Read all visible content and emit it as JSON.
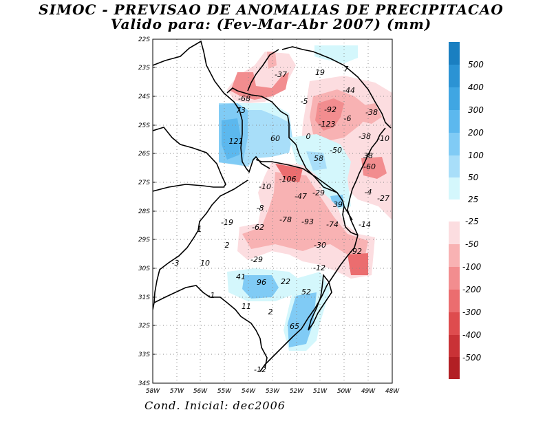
{
  "title_line1": "SIMOC - PREVISAO DE ANOMALIAS DE PRECIPITACAO",
  "title_line2": "Valido para: (Fev-Mar-Abr 2007) (mm)",
  "footer": "Cond. Inicial: dec2006",
  "lat_labels": [
    "22S",
    "23S",
    "24S",
    "25S",
    "26S",
    "27S",
    "28S",
    "29S",
    "30S",
    "31S",
    "32S",
    "33S",
    "34S"
  ],
  "lon_labels": [
    "58W",
    "57W",
    "56W",
    "55W",
    "54W",
    "53W",
    "52W",
    "51W",
    "50W",
    "49W",
    "48W"
  ],
  "colorbar": {
    "positive": [
      {
        "label": "500",
        "color": "#1a7fc1"
      },
      {
        "label": "400",
        "color": "#2b93d4"
      },
      {
        "label": "300",
        "color": "#3fa6e3"
      },
      {
        "label": "200",
        "color": "#5cb8ee"
      },
      {
        "label": "100",
        "color": "#80cbf5"
      },
      {
        "label": "50",
        "color": "#a8def9"
      },
      {
        "label": "25",
        "color": "#d4f7fc"
      }
    ],
    "negative": [
      {
        "label": "-25",
        "color": "#fcdde0"
      },
      {
        "label": "-50",
        "color": "#f8b2b3"
      },
      {
        "label": "-100",
        "color": "#f28d8f"
      },
      {
        "label": "-200",
        "color": "#eb6d6f"
      },
      {
        "label": "-300",
        "color": "#de4c4e"
      },
      {
        "label": "-400",
        "color": "#c93236"
      },
      {
        "label": "-500",
        "color": "#b21f24"
      }
    ]
  },
  "values": [
    {
      "text": "-37"
    },
    {
      "text": "19"
    },
    {
      "text": "7"
    },
    {
      "text": "-68"
    },
    {
      "text": "-44"
    },
    {
      "text": "-5"
    },
    {
      "text": "73"
    },
    {
      "text": "-92"
    },
    {
      "text": "-38"
    },
    {
      "text": "-6"
    },
    {
      "text": "-123"
    },
    {
      "text": "0"
    },
    {
      "text": "-38"
    },
    {
      "text": "-10"
    },
    {
      "text": "60"
    },
    {
      "text": "121"
    },
    {
      "text": "-50"
    },
    {
      "text": "38"
    },
    {
      "text": "58"
    },
    {
      "text": "-60"
    },
    {
      "text": "-106"
    },
    {
      "text": "-10"
    },
    {
      "text": "-4"
    },
    {
      "text": "-29"
    },
    {
      "text": "-47"
    },
    {
      "text": "-27"
    },
    {
      "text": "39"
    },
    {
      "text": "-8"
    },
    {
      "text": "-19"
    },
    {
      "text": "-78"
    },
    {
      "text": "-93"
    },
    {
      "text": "-74"
    },
    {
      "text": "-14"
    },
    {
      "text": "-62"
    },
    {
      "text": "1"
    },
    {
      "text": "2"
    },
    {
      "text": "-30"
    },
    {
      "text": "-92"
    },
    {
      "text": "-29"
    },
    {
      "text": "-3"
    },
    {
      "text": "10"
    },
    {
      "text": "-12"
    },
    {
      "text": "41"
    },
    {
      "text": "96"
    },
    {
      "text": "22"
    },
    {
      "text": "-1"
    },
    {
      "text": "52"
    },
    {
      "text": "11"
    },
    {
      "text": "2"
    },
    {
      "text": "65"
    },
    {
      "text": "-12"
    }
  ]
}
